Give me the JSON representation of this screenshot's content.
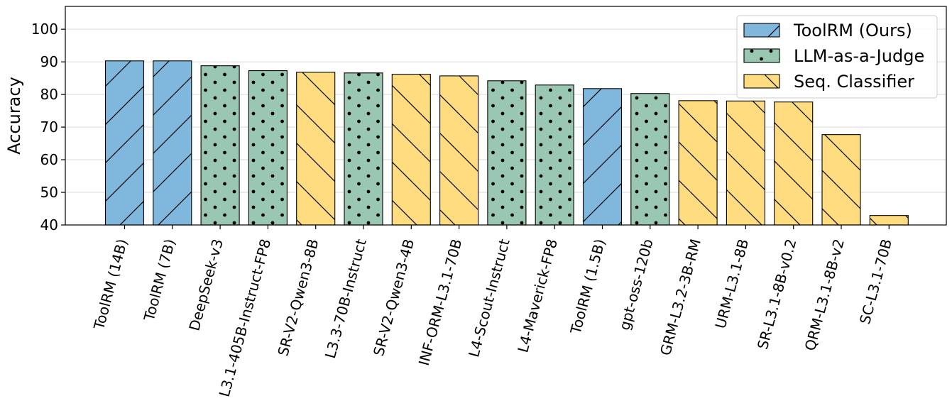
{
  "chart_data": {
    "type": "bar",
    "title": "",
    "xlabel": "",
    "ylabel": "Accuracy",
    "ylim": [
      40,
      107
    ],
    "yticks": [
      40,
      50,
      60,
      70,
      80,
      90,
      100
    ],
    "grid": "horizontal",
    "legend_position": "top-right",
    "series_styles": [
      {
        "name": "ToolRM (Ours)",
        "color": "#7fb8dc",
        "hatch": "forward-slash"
      },
      {
        "name": "LLM-as-a-Judge",
        "color": "#99c7b1",
        "hatch": "dots"
      },
      {
        "name": "Seq. Classifier",
        "color": "#fedc7f",
        "hatch": "back-slash"
      }
    ],
    "bars": [
      {
        "label": "ToolRM (14B)",
        "value": 90.3,
        "group": "ToolRM (Ours)"
      },
      {
        "label": "ToolRM (7B)",
        "value": 90.3,
        "group": "ToolRM (Ours)"
      },
      {
        "label": "DeepSeek-v3",
        "value": 88.8,
        "group": "LLM-as-a-Judge"
      },
      {
        "label": "L3.1-405B-Instruct-FP8",
        "value": 87.3,
        "group": "LLM-as-a-Judge"
      },
      {
        "label": "SR-V2-Qwen3-8B",
        "value": 86.8,
        "group": "Seq. Classifier"
      },
      {
        "label": "L3.3-70B-Instruct",
        "value": 86.6,
        "group": "LLM-as-a-Judge"
      },
      {
        "label": "SR-V2-Qwen3-4B",
        "value": 86.2,
        "group": "Seq. Classifier"
      },
      {
        "label": "INF-ORM-L3.1-70B",
        "value": 85.7,
        "group": "Seq. Classifier"
      },
      {
        "label": "L4-Scout-Instruct",
        "value": 84.2,
        "group": "LLM-as-a-Judge"
      },
      {
        "label": "L4-Maverick-FP8",
        "value": 82.9,
        "group": "LLM-as-a-Judge"
      },
      {
        "label": "ToolRM (1.5B)",
        "value": 81.8,
        "group": "ToolRM (Ours)"
      },
      {
        "label": "gpt-oss-120b",
        "value": 80.3,
        "group": "LLM-as-a-Judge"
      },
      {
        "label": "GRM-L3.2-3B-RM",
        "value": 78.1,
        "group": "Seq. Classifier"
      },
      {
        "label": "URM-L3.1-8B",
        "value": 78.0,
        "group": "Seq. Classifier"
      },
      {
        "label": "SR-L3.1-8B-v0.2",
        "value": 77.7,
        "group": "Seq. Classifier"
      },
      {
        "label": "QRM-L3.1-8B-v2",
        "value": 67.7,
        "group": "Seq. Classifier"
      },
      {
        "label": "SC-L3.1-70B",
        "value": 42.9,
        "group": "Seq. Classifier"
      }
    ]
  }
}
